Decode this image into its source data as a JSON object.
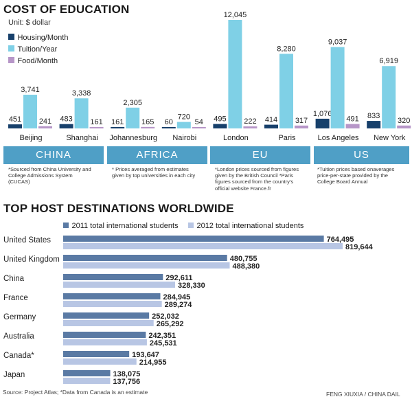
{
  "cost": {
    "title": "COST OF EDUCATION",
    "unit": "Unit: $ dollar",
    "colors": {
      "housing": "#17406b",
      "tuition": "#7fd0e6",
      "food": "#b796c8",
      "region_bar": "#4f9fc6"
    },
    "legend": [
      "Housing/Month",
      "Tuition/Year",
      "Food/Month"
    ],
    "regions": [
      "CHINA",
      "AFRICA",
      "EU",
      "US"
    ],
    "notes": [
      "*Sourced from China University and College Admissions System (CUCAS)",
      "* Prices averaged from estimates given by top universities in each city",
      "*London prices sourced from figures given by the British Council *Paris figures sourced from the country's official website France.fr",
      "*Tuition prices based onaverages price-per-state provided by the College Board Annual"
    ]
  },
  "hosts": {
    "title": "TOP HOST DESTINATIONS WORLDWIDE",
    "colors": {
      "y2011": "#5a7aa4",
      "y2012": "#b8c6e4"
    },
    "legend": [
      "2011 total international students",
      "2012 total international students"
    ]
  },
  "footer": {
    "source": "Source: Project Atlas; *Data from Canada is an estimate",
    "credit": "FENG XIUXIA / CHINA DAIL"
  },
  "chart_data": [
    {
      "type": "bar",
      "title": "COST OF EDUCATION",
      "categories": [
        "Beijing",
        "Shanghai",
        "Johannesburg",
        "Nairobi",
        "London",
        "Paris",
        "Los Angeles",
        "New York"
      ],
      "series": [
        {
          "name": "Housing/Month",
          "values": [
            451,
            483,
            161,
            60,
            495,
            414,
            1076,
            833
          ],
          "labels": [
            "451",
            "483",
            "161",
            "60",
            "495",
            "414",
            "1,076",
            "833"
          ]
        },
        {
          "name": "Tuition/Year",
          "values": [
            3741,
            3338,
            2305,
            720,
            12045,
            8280,
            9037,
            6919
          ],
          "labels": [
            "3,741",
            "3,338",
            "2,305",
            "720",
            "12,045",
            "8,280",
            "9,037",
            "6,919"
          ]
        },
        {
          "name": "Food/Month",
          "values": [
            241,
            161,
            165,
            54,
            222,
            317,
            491,
            320
          ],
          "labels": [
            "241",
            "161",
            "165",
            "54",
            "222",
            "317",
            "491",
            "320"
          ]
        }
      ],
      "ylim": [
        0,
        12045
      ]
    },
    {
      "type": "bar",
      "orientation": "horizontal",
      "title": "TOP HOST DESTINATIONS WORLDWIDE",
      "categories": [
        "United States",
        "United Kingdom",
        "China",
        "France",
        "Germany",
        "Australia",
        "Canada*",
        "Japan"
      ],
      "series": [
        {
          "name": "2011 total international students",
          "values": [
            764495,
            480755,
            292611,
            284945,
            252032,
            242351,
            193647,
            138075
          ],
          "labels": [
            "764,495",
            "480,755",
            "292,611",
            "284,945",
            "252,032",
            "242,351",
            "193,647",
            "138,075"
          ]
        },
        {
          "name": "2012 total international students",
          "values": [
            819644,
            488380,
            328330,
            289274,
            265292,
            245531,
            214955,
            137756
          ],
          "labels": [
            "819,644",
            "488,380",
            "328,330",
            "289,274",
            "265,292",
            "245,531",
            "214,955",
            "137,756"
          ]
        }
      ],
      "xlim": [
        0,
        819644
      ]
    }
  ]
}
